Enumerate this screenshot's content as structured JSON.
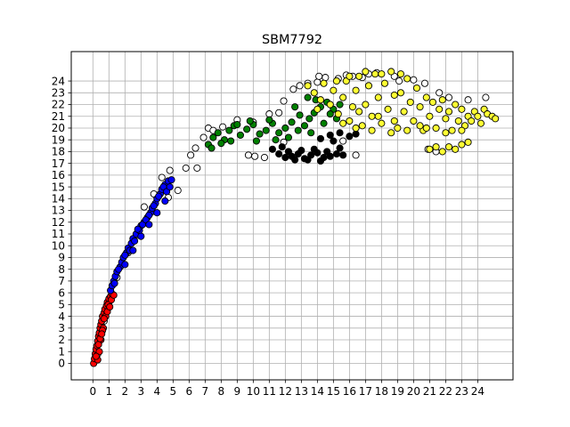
{
  "chart_data": {
    "type": "scatter",
    "title": "SBM7792",
    "xlabel": "",
    "ylabel": "",
    "xlim": [
      -1.35,
      26.2
    ],
    "ylim": [
      -1.4,
      26.5
    ],
    "xticks": [
      0,
      1,
      2,
      3,
      4,
      5,
      6,
      7,
      8,
      9,
      10,
      11,
      12,
      13,
      14,
      15,
      16,
      17,
      18,
      19,
      20,
      21,
      22,
      23,
      24
    ],
    "yticks": [
      0,
      1,
      2,
      3,
      4,
      5,
      6,
      7,
      8,
      9,
      10,
      11,
      12,
      13,
      14,
      15,
      16,
      17,
      18,
      19,
      20,
      21,
      22,
      23,
      24
    ],
    "grid": true,
    "legend": "none",
    "clusters": [
      {
        "color": "#ffffff",
        "marker_edge": "#000000",
        "points": [
          [
            0.3,
            0.8
          ],
          [
            0.7,
            3.6
          ],
          [
            1.0,
            5.2
          ],
          [
            1.3,
            6.8
          ],
          [
            1.5,
            7.3
          ],
          [
            2.2,
            9.4
          ],
          [
            2.8,
            10.9
          ],
          [
            3.2,
            13.3
          ],
          [
            3.8,
            14.4
          ],
          [
            4.3,
            15.8
          ],
          [
            4.8,
            16.4
          ],
          [
            4.7,
            14.1
          ],
          [
            5.3,
            14.7
          ],
          [
            5.8,
            16.6
          ],
          [
            6.1,
            17.7
          ],
          [
            6.4,
            18.3
          ],
          [
            6.9,
            19.2
          ],
          [
            7.2,
            20.0
          ],
          [
            7.5,
            19.8
          ],
          [
            8.1,
            20.1
          ],
          [
            9.0,
            20.7
          ],
          [
            10.0,
            20.5
          ],
          [
            11.0,
            21.2
          ],
          [
            10.1,
            17.6
          ],
          [
            10.7,
            17.5
          ],
          [
            11.9,
            18.8
          ],
          [
            11.6,
            21.3
          ],
          [
            11.9,
            22.3
          ],
          [
            12.5,
            23.3
          ],
          [
            12.9,
            23.6
          ],
          [
            13.4,
            23.8
          ],
          [
            14.0,
            23.9
          ],
          [
            14.1,
            24.4
          ],
          [
            14.5,
            24.3
          ],
          [
            15.3,
            24.2
          ],
          [
            15.8,
            24.5
          ],
          [
            16.2,
            24.4
          ],
          [
            16.8,
            24.3
          ],
          [
            17.2,
            24.6
          ],
          [
            17.7,
            24.7
          ],
          [
            18.8,
            24.4
          ],
          [
            19.1,
            24.0
          ],
          [
            20.0,
            24.1
          ],
          [
            20.7,
            23.8
          ],
          [
            21.6,
            23.0
          ],
          [
            22.2,
            22.6
          ],
          [
            23.4,
            22.4
          ],
          [
            24.5,
            22.6
          ],
          [
            20.9,
            18.2
          ],
          [
            21.4,
            18.0
          ],
          [
            15.6,
            18.9
          ],
          [
            16.4,
            17.7
          ],
          [
            9.7,
            17.7
          ],
          [
            6.5,
            16.6
          ]
        ]
      },
      {
        "color": "#ff0000",
        "marker_edge": "#000000",
        "points": [
          [
            0.05,
            0.0
          ],
          [
            0.1,
            0.4
          ],
          [
            0.15,
            0.8
          ],
          [
            0.2,
            1.2
          ],
          [
            0.25,
            1.5
          ],
          [
            0.3,
            1.9
          ],
          [
            0.35,
            2.3
          ],
          [
            0.4,
            2.6
          ],
          [
            0.45,
            3.0
          ],
          [
            0.5,
            3.3
          ],
          [
            0.55,
            3.6
          ],
          [
            0.6,
            4.0
          ],
          [
            0.7,
            4.3
          ],
          [
            0.75,
            4.6
          ],
          [
            0.85,
            4.9
          ],
          [
            0.9,
            5.2
          ],
          [
            1.0,
            5.5
          ],
          [
            1.1,
            5.7
          ],
          [
            1.2,
            5.9
          ],
          [
            0.3,
            0.3
          ],
          [
            0.4,
            1.0
          ],
          [
            0.5,
            2.0
          ],
          [
            0.65,
            3.0
          ],
          [
            0.8,
            4.0
          ],
          [
            0.95,
            5.0
          ],
          [
            1.15,
            5.4
          ],
          [
            0.2,
            0.6
          ],
          [
            0.6,
            2.8
          ],
          [
            0.9,
            4.4
          ],
          [
            1.3,
            5.8
          ],
          [
            0.7,
            3.8
          ],
          [
            0.35,
            1.6
          ],
          [
            0.45,
            2.1
          ],
          [
            0.55,
            2.5
          ],
          [
            1.05,
            4.8
          ]
        ]
      },
      {
        "color": "#0000ff",
        "marker_edge": "#000000",
        "points": [
          [
            1.1,
            6.2
          ],
          [
            1.2,
            6.6
          ],
          [
            1.3,
            7.0
          ],
          [
            1.4,
            7.4
          ],
          [
            1.5,
            7.8
          ],
          [
            1.7,
            8.2
          ],
          [
            1.8,
            8.6
          ],
          [
            1.9,
            9.0
          ],
          [
            2.1,
            9.4
          ],
          [
            2.2,
            9.8
          ],
          [
            2.4,
            10.2
          ],
          [
            2.5,
            10.6
          ],
          [
            2.7,
            11.0
          ],
          [
            2.9,
            11.3
          ],
          [
            3.0,
            11.7
          ],
          [
            3.2,
            12.0
          ],
          [
            3.4,
            12.4
          ],
          [
            3.6,
            12.8
          ],
          [
            3.7,
            13.2
          ],
          [
            3.9,
            13.6
          ],
          [
            4.0,
            14.0
          ],
          [
            4.2,
            14.4
          ],
          [
            4.3,
            14.8
          ],
          [
            4.5,
            15.2
          ],
          [
            4.7,
            15.5
          ],
          [
            4.9,
            15.6
          ],
          [
            4.4,
            15.0
          ],
          [
            4.1,
            14.2
          ],
          [
            3.5,
            12.6
          ],
          [
            3.1,
            11.8
          ],
          [
            2.6,
            10.4
          ],
          [
            2.3,
            9.6
          ],
          [
            2.0,
            9.2
          ],
          [
            1.6,
            8.0
          ],
          [
            1.35,
            6.8
          ],
          [
            2.8,
            11.4
          ],
          [
            3.3,
            12.2
          ],
          [
            3.8,
            13.4
          ],
          [
            4.6,
            14.6
          ],
          [
            4.8,
            15.0
          ],
          [
            2.0,
            8.4
          ],
          [
            2.5,
            9.6
          ],
          [
            3.0,
            10.8
          ],
          [
            3.5,
            11.8
          ],
          [
            4.0,
            12.8
          ],
          [
            4.5,
            13.8
          ]
        ]
      },
      {
        "color": "#008000",
        "marker_edge": "#000000",
        "points": [
          [
            7.2,
            18.6
          ],
          [
            7.5,
            19.2
          ],
          [
            7.8,
            19.6
          ],
          [
            8.2,
            19.0
          ],
          [
            8.5,
            19.8
          ],
          [
            8.8,
            20.2
          ],
          [
            9.2,
            19.4
          ],
          [
            9.6,
            19.9
          ],
          [
            10.0,
            20.3
          ],
          [
            10.4,
            19.5
          ],
          [
            10.8,
            19.8
          ],
          [
            11.2,
            20.4
          ],
          [
            11.6,
            19.6
          ],
          [
            12.0,
            20.0
          ],
          [
            12.4,
            20.5
          ],
          [
            12.8,
            19.8
          ],
          [
            13.2,
            20.2
          ],
          [
            13.5,
            20.8
          ],
          [
            13.8,
            21.3
          ],
          [
            14.2,
            21.8
          ],
          [
            14.6,
            22.2
          ],
          [
            15.0,
            21.6
          ],
          [
            15.4,
            22.0
          ],
          [
            13.4,
            22.6
          ],
          [
            13.9,
            22.4
          ],
          [
            12.6,
            21.8
          ],
          [
            7.4,
            18.3
          ],
          [
            8.0,
            18.7
          ],
          [
            9.0,
            20.3
          ],
          [
            10.2,
            18.9
          ],
          [
            11.4,
            19.0
          ],
          [
            12.2,
            19.2
          ],
          [
            14.4,
            20.4
          ],
          [
            15.2,
            20.8
          ],
          [
            8.6,
            18.9
          ],
          [
            9.8,
            20.6
          ],
          [
            11.0,
            20.7
          ],
          [
            12.9,
            21.1
          ],
          [
            13.6,
            19.6
          ],
          [
            14.8,
            21.2
          ]
        ]
      },
      {
        "color": "#000000",
        "marker_edge": "#000000",
        "points": [
          [
            11.2,
            18.2
          ],
          [
            11.6,
            17.8
          ],
          [
            12.0,
            17.5
          ],
          [
            12.4,
            17.6
          ],
          [
            12.8,
            17.8
          ],
          [
            13.2,
            17.4
          ],
          [
            13.6,
            17.7
          ],
          [
            14.0,
            17.9
          ],
          [
            14.4,
            17.5
          ],
          [
            14.8,
            17.6
          ],
          [
            15.2,
            17.8
          ],
          [
            15.6,
            17.7
          ],
          [
            12.2,
            18.0
          ],
          [
            13.0,
            18.1
          ],
          [
            13.8,
            18.2
          ],
          [
            14.6,
            18.0
          ],
          [
            15.4,
            18.3
          ],
          [
            14.2,
            19.1
          ],
          [
            14.8,
            19.4
          ],
          [
            15.4,
            19.6
          ],
          [
            16.0,
            19.3
          ],
          [
            16.4,
            19.5
          ],
          [
            15.0,
            18.9
          ],
          [
            12.6,
            17.3
          ],
          [
            13.4,
            17.3
          ],
          [
            14.2,
            17.2
          ],
          [
            11.8,
            18.4
          ]
        ]
      },
      {
        "color": "#ffff33",
        "marker_edge": "#000000",
        "points": [
          [
            13.4,
            23.6
          ],
          [
            13.8,
            23.0
          ],
          [
            14.2,
            22.4
          ],
          [
            14.4,
            23.8
          ],
          [
            14.8,
            22.0
          ],
          [
            15.0,
            23.2
          ],
          [
            15.3,
            21.2
          ],
          [
            15.6,
            22.6
          ],
          [
            15.8,
            24.0
          ],
          [
            16.0,
            20.6
          ],
          [
            16.2,
            21.8
          ],
          [
            16.4,
            23.2
          ],
          [
            16.6,
            24.4
          ],
          [
            16.8,
            20.2
          ],
          [
            17.0,
            22.0
          ],
          [
            17.2,
            23.6
          ],
          [
            17.4,
            21.0
          ],
          [
            17.6,
            24.6
          ],
          [
            17.8,
            22.6
          ],
          [
            18.0,
            20.4
          ],
          [
            18.2,
            23.8
          ],
          [
            18.4,
            21.6
          ],
          [
            18.6,
            24.8
          ],
          [
            18.8,
            22.8
          ],
          [
            19.0,
            20.0
          ],
          [
            19.2,
            23.0
          ],
          [
            19.4,
            21.4
          ],
          [
            19.6,
            24.2
          ],
          [
            19.8,
            22.2
          ],
          [
            20.0,
            20.6
          ],
          [
            20.2,
            23.4
          ],
          [
            20.4,
            21.8
          ],
          [
            20.6,
            19.8
          ],
          [
            20.8,
            22.6
          ],
          [
            21.0,
            21.0
          ],
          [
            21.2,
            22.2
          ],
          [
            21.4,
            20.0
          ],
          [
            21.6,
            21.6
          ],
          [
            21.8,
            22.4
          ],
          [
            22.0,
            20.8
          ],
          [
            22.2,
            21.4
          ],
          [
            22.4,
            19.8
          ],
          [
            22.6,
            22.0
          ],
          [
            22.8,
            20.6
          ],
          [
            23.0,
            21.6
          ],
          [
            23.2,
            20.2
          ],
          [
            23.4,
            21.0
          ],
          [
            23.6,
            20.6
          ],
          [
            23.8,
            21.4
          ],
          [
            24.0,
            21.0
          ],
          [
            24.2,
            20.4
          ],
          [
            24.4,
            21.6
          ],
          [
            24.6,
            21.2
          ],
          [
            24.9,
            21.0
          ],
          [
            25.1,
            20.8
          ],
          [
            16.0,
            24.4
          ],
          [
            17.0,
            24.8
          ],
          [
            18.0,
            24.6
          ],
          [
            19.2,
            24.6
          ],
          [
            15.2,
            24.0
          ],
          [
            14.0,
            21.6
          ],
          [
            16.6,
            21.4
          ],
          [
            17.8,
            21.0
          ],
          [
            18.8,
            20.6
          ],
          [
            20.4,
            20.2
          ],
          [
            21.4,
            18.4
          ],
          [
            21.8,
            18.0
          ],
          [
            22.2,
            18.4
          ],
          [
            22.6,
            18.2
          ],
          [
            23.0,
            18.6
          ],
          [
            23.4,
            18.8
          ],
          [
            21.0,
            18.2
          ],
          [
            15.6,
            20.4
          ],
          [
            16.4,
            20.0
          ],
          [
            17.4,
            19.8
          ],
          [
            18.6,
            19.6
          ],
          [
            19.6,
            19.8
          ],
          [
            20.8,
            20.0
          ],
          [
            22.0,
            19.6
          ],
          [
            23.0,
            19.8
          ]
        ]
      }
    ]
  }
}
